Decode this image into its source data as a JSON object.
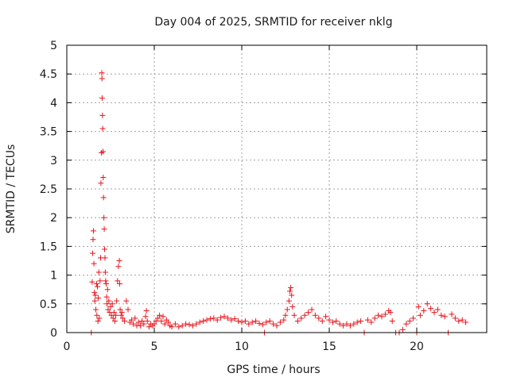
{
  "chart_data": {
    "type": "scatter",
    "title": "Day 004 of 2025, SRMTID for receiver nklg",
    "xlabel": "GPS time / hours",
    "ylabel": "SRMTID / TECUs",
    "xlim": [
      0,
      24.0
    ],
    "ylim": [
      0,
      5
    ],
    "x_ticks": [
      0,
      5,
      10,
      15,
      20
    ],
    "x_tick_labels": [
      "0",
      "5",
      "10",
      "15",
      "20"
    ],
    "y_ticks": [
      0,
      0.5,
      1,
      1.5,
      2,
      2.5,
      3,
      3.5,
      4,
      4.5,
      5
    ],
    "y_tick_labels": [
      "0",
      "0.5",
      "1",
      "1.5",
      "2",
      "2.5",
      "3",
      "3.5",
      "4",
      "4.5",
      "5"
    ],
    "grid": true,
    "marker": "+",
    "color": "#e8141c",
    "series": [
      {
        "name": "nklg",
        "points": [
          [
            1.4,
            0.0
          ],
          [
            1.45,
            0.88
          ],
          [
            1.48,
            1.38
          ],
          [
            1.5,
            1.62
          ],
          [
            1.52,
            1.77
          ],
          [
            1.55,
            1.2
          ],
          [
            1.58,
            0.7
          ],
          [
            1.6,
            0.55
          ],
          [
            1.63,
            0.65
          ],
          [
            1.66,
            0.4
          ],
          [
            1.7,
            0.85
          ],
          [
            1.72,
            0.3
          ],
          [
            1.75,
            0.8
          ],
          [
            1.78,
            0.2
          ],
          [
            1.8,
            0.6
          ],
          [
            1.83,
            1.05
          ],
          [
            1.86,
            0.25
          ],
          [
            1.9,
            0.9
          ],
          [
            1.93,
            1.3
          ],
          [
            1.95,
            2.6
          ],
          [
            1.98,
            3.13
          ],
          [
            2.0,
            4.52
          ],
          [
            2.01,
            4.42
          ],
          [
            2.02,
            4.08
          ],
          [
            2.04,
            3.78
          ],
          [
            2.05,
            3.55
          ],
          [
            2.07,
            3.15
          ],
          [
            2.08,
            2.7
          ],
          [
            2.1,
            2.35
          ],
          [
            2.12,
            2.0
          ],
          [
            2.14,
            1.8
          ],
          [
            2.16,
            1.45
          ],
          [
            2.18,
            1.3
          ],
          [
            2.2,
            1.05
          ],
          [
            2.22,
            0.9
          ],
          [
            2.25,
            0.85
          ],
          [
            2.28,
            0.62
          ],
          [
            2.3,
            0.5
          ],
          [
            2.33,
            0.75
          ],
          [
            2.36,
            0.4
          ],
          [
            2.4,
            0.55
          ],
          [
            2.45,
            0.35
          ],
          [
            2.5,
            0.45
          ],
          [
            2.55,
            0.3
          ],
          [
            2.6,
            0.5
          ],
          [
            2.65,
            0.25
          ],
          [
            2.7,
            0.35
          ],
          [
            2.75,
            0.2
          ],
          [
            2.8,
            0.3
          ],
          [
            2.85,
            0.55
          ],
          [
            2.9,
            0.9
          ],
          [
            2.95,
            1.15
          ],
          [
            3.0,
            1.25
          ],
          [
            3.02,
            0.85
          ],
          [
            3.05,
            0.4
          ],
          [
            3.1,
            0.3
          ],
          [
            3.15,
            0.35
          ],
          [
            3.2,
            0.25
          ],
          [
            3.3,
            0.2
          ],
          [
            3.4,
            0.55
          ],
          [
            3.5,
            0.4
          ],
          [
            3.6,
            0.18
          ],
          [
            3.7,
            0.22
          ],
          [
            3.8,
            0.15
          ],
          [
            3.9,
            0.25
          ],
          [
            4.0,
            0.12
          ],
          [
            4.1,
            0.18
          ],
          [
            4.2,
            0.12
          ],
          [
            4.3,
            0.2
          ],
          [
            4.4,
            0.15
          ],
          [
            4.5,
            0.28
          ],
          [
            4.55,
            0.38
          ],
          [
            4.6,
            0.2
          ],
          [
            4.7,
            0.1
          ],
          [
            4.8,
            0.15
          ],
          [
            4.9,
            0.12
          ],
          [
            5.0,
            0.15
          ],
          [
            5.1,
            0.2
          ],
          [
            5.2,
            0.25
          ],
          [
            5.3,
            0.3
          ],
          [
            5.4,
            0.2
          ],
          [
            5.5,
            0.28
          ],
          [
            5.6,
            0.15
          ],
          [
            5.7,
            0.22
          ],
          [
            5.8,
            0.18
          ],
          [
            5.9,
            0.12
          ],
          [
            6.0,
            0.1
          ],
          [
            6.2,
            0.15
          ],
          [
            6.4,
            0.1
          ],
          [
            6.6,
            0.12
          ],
          [
            6.8,
            0.15
          ],
          [
            7.0,
            0.14
          ],
          [
            7.2,
            0.12
          ],
          [
            7.4,
            0.15
          ],
          [
            7.6,
            0.18
          ],
          [
            7.8,
            0.2
          ],
          [
            8.0,
            0.22
          ],
          [
            8.2,
            0.24
          ],
          [
            8.4,
            0.25
          ],
          [
            8.6,
            0.22
          ],
          [
            8.8,
            0.26
          ],
          [
            9.0,
            0.28
          ],
          [
            9.2,
            0.25
          ],
          [
            9.4,
            0.22
          ],
          [
            9.6,
            0.24
          ],
          [
            9.8,
            0.2
          ],
          [
            10.0,
            0.18
          ],
          [
            10.2,
            0.2
          ],
          [
            10.4,
            0.15
          ],
          [
            10.6,
            0.18
          ],
          [
            10.8,
            0.2
          ],
          [
            11.0,
            0.16
          ],
          [
            11.2,
            0.14
          ],
          [
            11.3,
            0.0
          ],
          [
            11.4,
            0.18
          ],
          [
            11.6,
            0.2
          ],
          [
            11.8,
            0.15
          ],
          [
            12.0,
            0.12
          ],
          [
            12.2,
            0.18
          ],
          [
            12.4,
            0.22
          ],
          [
            12.5,
            0.3
          ],
          [
            12.6,
            0.4
          ],
          [
            12.7,
            0.55
          ],
          [
            12.75,
            0.72
          ],
          [
            12.8,
            0.78
          ],
          [
            12.85,
            0.65
          ],
          [
            12.9,
            0.45
          ],
          [
            13.0,
            0.3
          ],
          [
            13.2,
            0.2
          ],
          [
            13.4,
            0.25
          ],
          [
            13.6,
            0.3
          ],
          [
            13.8,
            0.35
          ],
          [
            14.0,
            0.4
          ],
          [
            14.2,
            0.3
          ],
          [
            14.4,
            0.25
          ],
          [
            14.6,
            0.2
          ],
          [
            14.8,
            0.28
          ],
          [
            15.0,
            0.22
          ],
          [
            15.2,
            0.18
          ],
          [
            15.4,
            0.2
          ],
          [
            15.6,
            0.15
          ],
          [
            15.8,
            0.12
          ],
          [
            16.0,
            0.15
          ],
          [
            16.2,
            0.12
          ],
          [
            16.4,
            0.15
          ],
          [
            16.6,
            0.18
          ],
          [
            16.8,
            0.2
          ],
          [
            17.0,
            0.0
          ],
          [
            17.2,
            0.22
          ],
          [
            17.4,
            0.18
          ],
          [
            17.6,
            0.25
          ],
          [
            17.8,
            0.3
          ],
          [
            18.0,
            0.28
          ],
          [
            18.2,
            0.32
          ],
          [
            18.4,
            0.38
          ],
          [
            18.5,
            0.35
          ],
          [
            18.6,
            0.2
          ],
          [
            18.8,
            0.0
          ],
          [
            19.0,
            0.0
          ],
          [
            19.2,
            0.05
          ],
          [
            19.4,
            0.15
          ],
          [
            19.6,
            0.2
          ],
          [
            19.8,
            0.25
          ],
          [
            20.0,
            0.0
          ],
          [
            20.1,
            0.45
          ],
          [
            20.2,
            0.3
          ],
          [
            20.4,
            0.38
          ],
          [
            20.6,
            0.5
          ],
          [
            20.8,
            0.42
          ],
          [
            21.0,
            0.35
          ],
          [
            21.2,
            0.4
          ],
          [
            21.4,
            0.3
          ],
          [
            21.6,
            0.28
          ],
          [
            21.8,
            0.0
          ],
          [
            22.0,
            0.32
          ],
          [
            22.2,
            0.25
          ],
          [
            22.4,
            0.2
          ],
          [
            22.6,
            0.22
          ],
          [
            22.8,
            0.18
          ]
        ]
      }
    ]
  }
}
